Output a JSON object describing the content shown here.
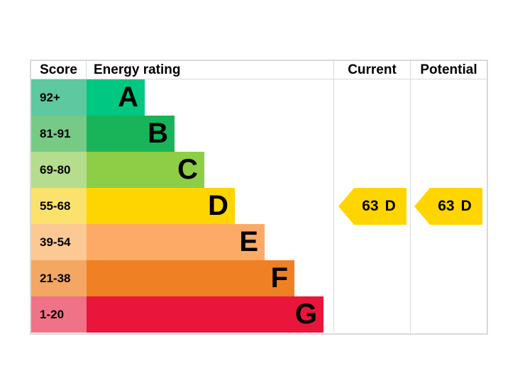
{
  "table": {
    "headers": {
      "score": "Score",
      "energy_rating": "Energy rating",
      "current": "Current",
      "potential": "Potential"
    },
    "border_color": "#d9d9d9"
  },
  "bands": [
    {
      "score": "92+",
      "letter": "A",
      "bar_color": "#00c781",
      "score_color": "#5ec8a1"
    },
    {
      "score": "81-91",
      "letter": "B",
      "bar_color": "#19b459",
      "score_color": "#76ca86"
    },
    {
      "score": "69-80",
      "letter": "C",
      "bar_color": "#8dce46",
      "score_color": "#b5dd8d"
    },
    {
      "score": "55-68",
      "letter": "D",
      "bar_color": "#ffd500",
      "score_color": "#fbe26d"
    },
    {
      "score": "39-54",
      "letter": "E",
      "bar_color": "#fcaa65",
      "score_color": "#fcc894"
    },
    {
      "score": "21-38",
      "letter": "F",
      "bar_color": "#ef8023",
      "score_color": "#f3a763"
    },
    {
      "score": "1-20",
      "letter": "G",
      "bar_color": "#e9153b",
      "score_color": "#ef7286"
    }
  ],
  "current": {
    "value": "63",
    "letter": "D",
    "arrow_color": "#ffd500"
  },
  "potential": {
    "value": "63",
    "letter": "D",
    "arrow_color": "#ffd500"
  },
  "chart_data": {
    "type": "bar",
    "title": "Energy rating",
    "categories": [
      "A",
      "B",
      "C",
      "D",
      "E",
      "F",
      "G"
    ],
    "score_ranges": [
      "92+",
      "81-91",
      "69-80",
      "55-68",
      "39-54",
      "21-38",
      "1-20"
    ],
    "bar_relative_lengths": [
      1,
      2,
      3,
      4,
      5,
      6,
      7
    ],
    "colors": [
      "#00c781",
      "#19b459",
      "#8dce46",
      "#ffd500",
      "#fcaa65",
      "#ef8023",
      "#e9153b"
    ],
    "current_rating": {
      "score": 63,
      "band": "D"
    },
    "potential_rating": {
      "score": 63,
      "band": "D"
    },
    "legend_position": "none",
    "grid": false
  }
}
